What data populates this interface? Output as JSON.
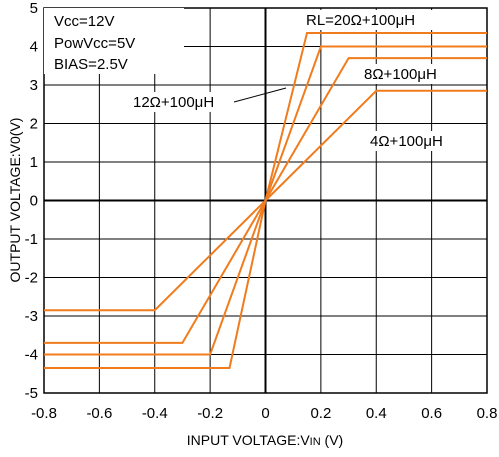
{
  "chart_data": {
    "type": "line",
    "xlabel": "INPUT VOLTAGE:VIN (V)",
    "ylabel": "OUTPUT VOLTAGE:V0(V)",
    "xlim": [
      -0.8,
      0.8
    ],
    "ylim": [
      -5,
      5
    ],
    "xticks": [
      "-0.8",
      "-0.6",
      "-0.4",
      "-0.2",
      "0",
      "0.2",
      "0.4",
      "0.6",
      "0.8"
    ],
    "yticks": [
      "5",
      "4",
      "3",
      "2",
      "1",
      "0",
      "-1",
      "-2",
      "-3",
      "-4",
      "-5"
    ],
    "grid": true,
    "line_color": "#f07c1e",
    "conditions": [
      "Vcc=12V",
      "PowVcc=5V",
      "BIAS=2.5V"
    ],
    "series": [
      {
        "name": "RL=20Ω+100μH",
        "x": [
          -0.8,
          -0.13,
          0,
          0.15,
          0.8
        ],
        "y": [
          -4.35,
          -4.35,
          0,
          4.35,
          4.35
        ]
      },
      {
        "name": "12Ω+100μH",
        "x": [
          -0.8,
          -0.2,
          0,
          0.2,
          0.8
        ],
        "y": [
          -4.0,
          -4.0,
          0,
          4.0,
          4.0
        ]
      },
      {
        "name": "8Ω+100μH",
        "x": [
          -0.8,
          -0.3,
          0,
          0.3,
          0.8
        ],
        "y": [
          -3.7,
          -3.7,
          0,
          3.7,
          3.7
        ]
      },
      {
        "name": "4Ω+100μH",
        "x": [
          -0.8,
          -0.4,
          0,
          0.4,
          0.8
        ],
        "y": [
          -2.85,
          -2.85,
          0,
          2.85,
          2.85
        ]
      }
    ]
  }
}
